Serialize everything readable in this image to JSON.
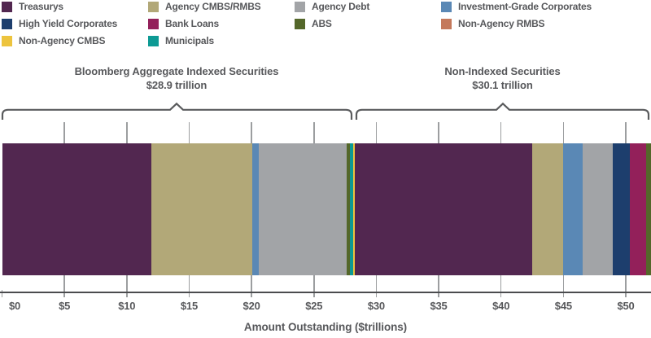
{
  "legend": {
    "columns": [
      [
        "Treasurys",
        "High Yield Corporates",
        "Non-Agency CMBS"
      ],
      [
        "Agency CMBS/RMBS",
        "Bank Loans",
        "Municipals"
      ],
      [
        "Agency Debt",
        "ABS"
      ],
      [
        "Investment-Grade Corporates",
        "Non-Agency RMBS"
      ]
    ]
  },
  "chart_data": {
    "type": "bar",
    "orientation": "horizontal-stacked-single-bar",
    "xlabel": "Amount Outstanding ($trillions)",
    "xlim": [
      0,
      52
    ],
    "grid": "vertical-ticks-behind-bar",
    "x_ticks": [
      {
        "value": 0,
        "label": "$0"
      },
      {
        "value": 5,
        "label": "$5"
      },
      {
        "value": 10,
        "label": "$10"
      },
      {
        "value": 15,
        "label": "$15"
      },
      {
        "value": 20,
        "label": "$20"
      },
      {
        "value": 25,
        "label": "$25"
      },
      {
        "value": 30,
        "label": "$30"
      },
      {
        "value": 35,
        "label": "$35"
      },
      {
        "value": 40,
        "label": "$40"
      },
      {
        "value": 45,
        "label": "$45"
      },
      {
        "value": 50,
        "label": "$50"
      }
    ],
    "sections": [
      {
        "name": "Bloomberg Aggregate Indexed Securities",
        "total_label": "$28.9 trillion",
        "total_trillions": 28.9,
        "segments": [
          {
            "category": "Treasurys",
            "value": 12.0
          },
          {
            "category": "Agency CMBS/RMBS",
            "value": 8.05
          },
          {
            "category": "Investment-Grade Corporates",
            "value": 0.5
          },
          {
            "category": "Agency Debt",
            "value": 7.05
          },
          {
            "category": "ABS",
            "value": 0.28
          },
          {
            "category": "Municipals",
            "value": 0.24
          },
          {
            "category": "Non-Agency CMBS",
            "value": 0.18
          }
        ]
      },
      {
        "name": "Non-Indexed Securities",
        "total_label": "$30.1 trillion",
        "total_trillions": 30.1,
        "segments": [
          {
            "category": "Treasurys",
            "value": 14.2
          },
          {
            "category": "Agency CMBS/RMBS",
            "value": 2.5
          },
          {
            "category": "Investment-Grade Corporates",
            "value": 1.55
          },
          {
            "category": "Agency Debt",
            "value": 2.4
          },
          {
            "category": "High Yield Corporates",
            "value": 1.35
          },
          {
            "category": "Bank Loans",
            "value": 1.3
          },
          {
            "category": "ABS",
            "value": 0.6,
            "clipped_at_image_edge": true
          }
        ]
      }
    ],
    "colors": {
      "Treasurys": "#522750",
      "High Yield Corporates": "#1d3e6d",
      "Non-Agency CMBS": "#edc43e",
      "Agency CMBS/RMBS": "#b2a878",
      "Bank Loans": "#93205a",
      "Municipals": "#0d9a94",
      "Agency Debt": "#a2a4a7",
      "ABS": "#54672a",
      "Investment-Grade Corporates": "#5a88b5",
      "Non-Agency RMBS": "#c4795b"
    }
  }
}
